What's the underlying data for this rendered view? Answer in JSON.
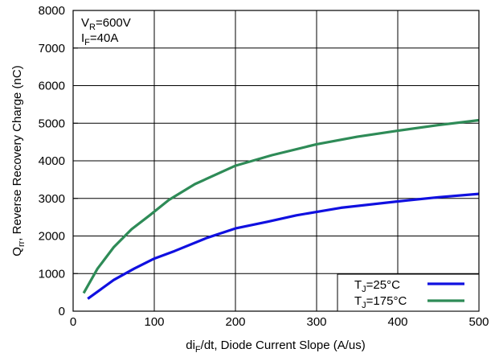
{
  "chart_data": {
    "type": "line",
    "xlim": [
      0,
      500
    ],
    "ylim": [
      0,
      8000
    ],
    "grid": true,
    "legend_position": "bottom-right",
    "x_ticks": [
      "0",
      "100",
      "200",
      "300",
      "400",
      "500"
    ],
    "y_ticks": [
      "0",
      "1000",
      "2000",
      "3000",
      "4000",
      "5000",
      "6000",
      "7000",
      "8000"
    ],
    "xlabel": {
      "pre": "di",
      "sub": "F",
      "post": "/dt, Diode Current Slope (A/us)"
    },
    "ylabel": {
      "pre": "Q",
      "sub": "rr",
      "post": ", Reverse Recovery Charge (nC)"
    },
    "annotation": [
      {
        "pre": "V",
        "sub": "R",
        "post": "=600V"
      },
      {
        "pre": "I",
        "sub": "F",
        "post": "=40A"
      }
    ],
    "series": [
      {
        "name": {
          "pre": "T",
          "sub": "J",
          "post": "=25°C"
        },
        "color": "#1010e0",
        "x": [
          18,
          50,
          75,
          100,
          125,
          165,
          200,
          240,
          275,
          330,
          400,
          450,
          500
        ],
        "y": [
          330,
          830,
          1130,
          1400,
          1600,
          1950,
          2200,
          2380,
          2550,
          2750,
          2920,
          3030,
          3120
        ]
      },
      {
        "name": {
          "pre": "T",
          "sub": "J",
          "post": "=175°C"
        },
        "color": "#2e8b57",
        "x": [
          13,
          30,
          50,
          72,
          95,
          118,
          150,
          200,
          245,
          300,
          350,
          400,
          450,
          500
        ],
        "y": [
          480,
          1130,
          1700,
          2180,
          2560,
          2960,
          3380,
          3870,
          4150,
          4440,
          4640,
          4800,
          4950,
          5080
        ]
      }
    ]
  }
}
